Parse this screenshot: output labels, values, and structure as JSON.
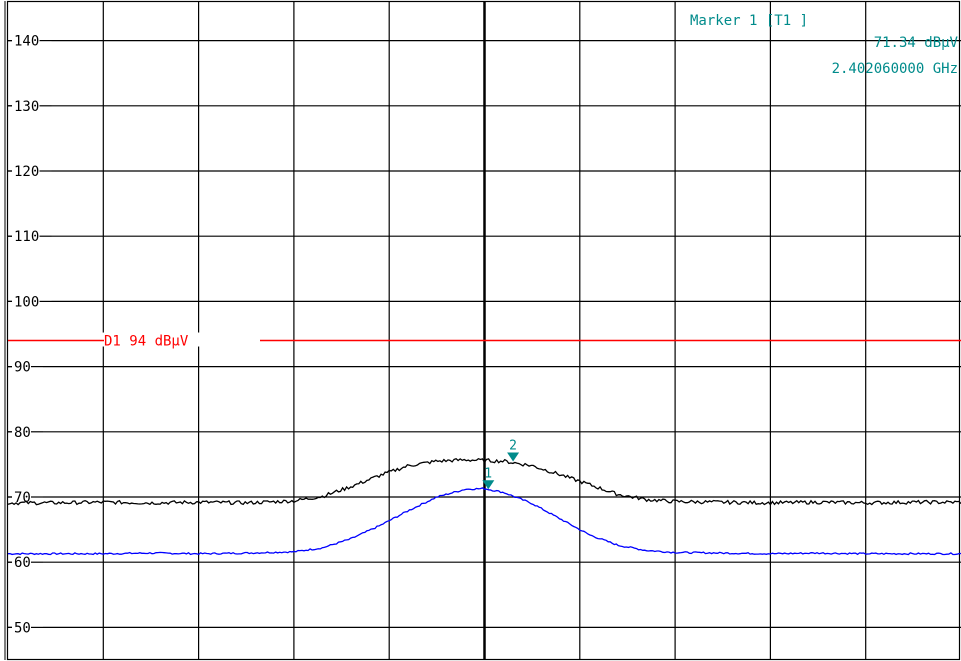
{
  "marker_info": {
    "line1": "Marker 1 [T1 ]",
    "line2": "71.34 dBµV",
    "line3": "2.402060000 GHz"
  },
  "display_line": {
    "label": "D1 94 dBµV"
  },
  "markers": [
    {
      "label": "1"
    },
    {
      "label": "2"
    }
  ],
  "colors": {
    "grid": "#000000",
    "trace1": "#0000ff",
    "trace2": "#000000",
    "display_line": "#ff0000",
    "marker_text": "#008b8b",
    "marker_symbol": "#008b8b"
  },
  "chart_data": {
    "type": "line",
    "title": "",
    "xlabel": "",
    "ylabel": "",
    "x_divisions": 10,
    "y_divisions": 10,
    "ylim": [
      45,
      145
    ],
    "y_ticks": [
      140,
      130,
      120,
      110,
      100,
      90,
      80,
      70,
      60,
      50
    ],
    "y_tick_labels": [
      "140",
      "130",
      "120",
      "110",
      "100",
      "90",
      "80",
      "70",
      "60",
      "50"
    ],
    "grid": true,
    "display_line_value": 94,
    "series": [
      {
        "x": [
          0,
          0.5,
          1,
          1.5,
          2,
          2.5,
          3,
          3.3,
          3.6,
          3.9,
          4.2,
          4.5,
          4.8,
          5.0,
          5.2,
          5.5,
          5.8,
          6.1,
          6.4,
          6.7,
          7.0,
          7.5,
          8,
          8.5,
          9,
          9.5,
          10
        ],
        "values": [
          61.3,
          61.3,
          61.3,
          61.4,
          61.3,
          61.4,
          61.6,
          62.2,
          63.6,
          65.6,
          67.9,
          70.0,
          71.2,
          71.3,
          70.7,
          69.0,
          66.6,
          64.2,
          62.6,
          61.8,
          61.5,
          61.4,
          61.3,
          61.4,
          61.3,
          61.3,
          61.3
        ]
      },
      {
        "x": [
          0,
          0.5,
          1,
          1.5,
          2,
          2.5,
          3,
          3.3,
          3.6,
          3.9,
          4.2,
          4.5,
          4.8,
          5.0,
          5.2,
          5.5,
          5.8,
          6.1,
          6.4,
          6.7,
          7.0,
          7.5,
          8,
          8.5,
          9,
          9.5,
          10
        ],
        "values": [
          69.1,
          69.1,
          69.2,
          69.1,
          69.2,
          69.1,
          69.4,
          70.1,
          71.6,
          73.3,
          74.8,
          75.5,
          75.7,
          75.6,
          75.5,
          74.8,
          73.4,
          71.9,
          70.4,
          69.6,
          69.3,
          69.2,
          69.1,
          69.2,
          69.1,
          69.2,
          69.2
        ]
      }
    ],
    "markers": [
      {
        "label": "1",
        "x": 5.04,
        "value": 71.34
      },
      {
        "label": "2",
        "x": 5.3,
        "value": 75.6
      }
    ]
  }
}
